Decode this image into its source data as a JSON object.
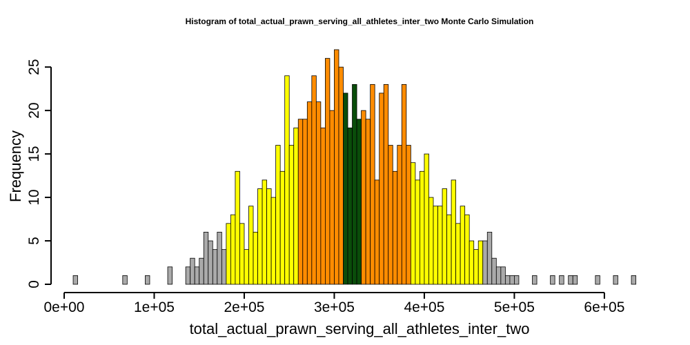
{
  "chart_data": {
    "type": "histogram",
    "title": "Histogram of  total_actual_prawn_serving_all_athletes_inter_two  Monte Carlo Simulation",
    "xlabel": "total_actual_prawn_serving_all_athletes_inter_two",
    "ylabel": "Frequency",
    "xlim": [
      0,
      620000
    ],
    "ylim": [
      0,
      27
    ],
    "bin_start": 10000,
    "bin_width": 5000,
    "x_ticks": [
      {
        "value": 0,
        "label": "0e+00"
      },
      {
        "value": 100000,
        "label": "1e+05"
      },
      {
        "value": 200000,
        "label": "2e+05"
      },
      {
        "value": 300000,
        "label": "3e+05"
      },
      {
        "value": 400000,
        "label": "4e+05"
      },
      {
        "value": 500000,
        "label": "5e+05"
      },
      {
        "value": 600000,
        "label": "6e+05"
      }
    ],
    "y_ticks": [
      {
        "value": 0,
        "label": "0"
      },
      {
        "value": 5,
        "label": "5"
      },
      {
        "value": 10,
        "label": "10"
      },
      {
        "value": 15,
        "label": "15"
      },
      {
        "value": 20,
        "label": "20"
      },
      {
        "value": 25,
        "label": "25"
      }
    ],
    "counts": [
      1,
      0,
      0,
      0,
      0,
      0,
      0,
      0,
      0,
      0,
      0,
      1,
      0,
      0,
      0,
      0,
      1,
      0,
      0,
      0,
      0,
      2,
      0,
      0,
      0,
      2,
      3,
      2,
      3,
      6,
      5,
      4,
      6,
      4,
      7,
      8,
      13,
      7,
      4,
      9,
      6,
      11,
      12,
      11,
      10,
      16,
      13,
      24,
      16,
      18,
      19,
      19,
      21,
      24,
      21,
      18,
      26,
      20,
      27,
      25,
      22,
      18,
      23,
      19,
      20,
      19,
      23,
      12,
      22,
      23,
      16,
      13,
      16,
      23,
      16,
      14,
      12,
      13,
      15,
      10,
      9,
      9,
      11,
      8,
      12,
      7,
      9,
      8,
      5,
      4,
      5,
      5,
      6,
      3,
      2,
      2,
      1,
      1,
      1,
      0,
      0,
      0,
      1,
      0,
      0,
      0,
      1,
      0,
      1,
      0,
      1,
      1,
      0,
      0,
      0,
      0,
      1,
      0,
      0,
      0,
      1,
      0,
      0,
      0,
      1
    ],
    "color_bands": [
      {
        "from": 0,
        "to": 180000,
        "color": "#aaaaaa"
      },
      {
        "from": 180000,
        "to": 260000,
        "color": "#ffff00"
      },
      {
        "from": 260000,
        "to": 310000,
        "color": "#ff8c00"
      },
      {
        "from": 310000,
        "to": 330000,
        "color": "#0a4d0a"
      },
      {
        "from": 330000,
        "to": 385000,
        "color": "#ff8c00"
      },
      {
        "from": 385000,
        "to": 465000,
        "color": "#ffff00"
      },
      {
        "from": 465000,
        "to": 999999,
        "color": "#aaaaaa"
      }
    ],
    "grid": false,
    "legend": "none"
  }
}
